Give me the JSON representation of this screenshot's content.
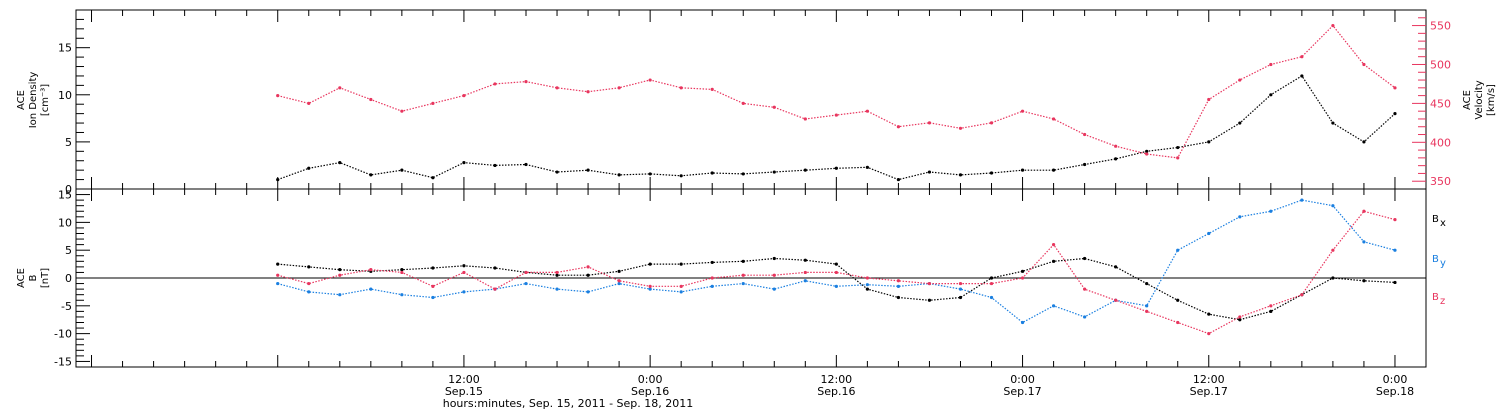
{
  "chart_data": [
    {
      "type": "scatter",
      "panel": "top",
      "ylabel_left": [
        "ACE",
        "Ion Density",
        "[cm⁻³]"
      ],
      "ylabel_right": [
        "ACE",
        "Velocity",
        "[km/s]"
      ],
      "ylim_left": [
        0,
        19
      ],
      "ylim_right": [
        340,
        570
      ],
      "left_ticks": [
        "0",
        "5",
        "10",
        "15"
      ],
      "left_tick_values": [
        0,
        5,
        10,
        15
      ],
      "right_ticks": [
        "350",
        "400",
        "450",
        "500",
        "550"
      ],
      "right_tick_values": [
        350,
        400,
        450,
        500,
        550
      ],
      "series": [
        {
          "name": "Ion Density",
          "color": "#000000",
          "axis": "left",
          "x": [
            0,
            2,
            4,
            6,
            8,
            10,
            12,
            14,
            16,
            18,
            20,
            22,
            24,
            26,
            28,
            30,
            32,
            34,
            36,
            38,
            40,
            42,
            44,
            46,
            48,
            50,
            52,
            54,
            56,
            58,
            60,
            62,
            64,
            66,
            68,
            70,
            72
          ],
          "values": [
            1.0,
            2.2,
            2.8,
            1.5,
            2.0,
            1.2,
            2.8,
            2.5,
            2.6,
            1.8,
            2.0,
            1.5,
            1.6,
            1.4,
            1.7,
            1.6,
            1.8,
            2.0,
            2.2,
            2.3,
            1.0,
            1.8,
            1.5,
            1.7,
            2.0,
            2.0,
            2.6,
            3.2,
            4.0,
            4.4,
            5.0,
            7.0,
            10.0,
            12.0,
            7.0,
            5.0,
            8.0
          ]
        },
        {
          "name": "Velocity",
          "color": "#e8355e",
          "axis": "right",
          "x": [
            0,
            2,
            4,
            6,
            8,
            10,
            12,
            14,
            16,
            18,
            20,
            22,
            24,
            26,
            28,
            30,
            32,
            34,
            36,
            38,
            40,
            42,
            44,
            46,
            48,
            50,
            52,
            54,
            56,
            58,
            60,
            62,
            64,
            66,
            68,
            70,
            72
          ],
          "values": [
            460,
            450,
            470,
            455,
            440,
            450,
            460,
            475,
            478,
            470,
            465,
            470,
            480,
            470,
            468,
            450,
            445,
            430,
            435,
            440,
            420,
            425,
            418,
            425,
            440,
            430,
            410,
            395,
            385,
            380,
            455,
            480,
            500,
            510,
            550,
            500,
            470
          ]
        }
      ]
    },
    {
      "type": "scatter",
      "panel": "bottom",
      "ylabel_left": [
        "ACE",
        "B",
        "[nT]"
      ],
      "ylim": [
        -16,
        16
      ],
      "left_ticks": [
        "15",
        "10",
        "5",
        "0",
        "-5",
        "-10",
        "-15"
      ],
      "left_tick_values": [
        15,
        10,
        5,
        0,
        -5,
        -10,
        -15
      ],
      "legend": [
        {
          "label": "B",
          "sub": "x",
          "color": "#000000"
        },
        {
          "label": "B",
          "sub": "y",
          "color": "#1a7fe0"
        },
        {
          "label": "B",
          "sub": "z",
          "color": "#e8355e"
        }
      ],
      "legend_placement": "right",
      "series": [
        {
          "name": "Bx",
          "color": "#000000",
          "x": [
            0,
            2,
            4,
            6,
            8,
            10,
            12,
            14,
            16,
            18,
            20,
            22,
            24,
            26,
            28,
            30,
            32,
            34,
            36,
            38,
            40,
            42,
            44,
            46,
            48,
            50,
            52,
            54,
            56,
            58,
            60,
            62,
            64,
            66,
            68,
            70,
            72
          ],
          "values": [
            2.5,
            2.0,
            1.5,
            1.2,
            1.5,
            1.8,
            2.2,
            1.8,
            1.0,
            0.5,
            0.5,
            1.2,
            2.5,
            2.5,
            2.8,
            3.0,
            3.5,
            3.2,
            2.5,
            -2.0,
            -3.5,
            -4.0,
            -3.5,
            0.0,
            1.2,
            3.0,
            3.5,
            2.0,
            -1.0,
            -4.0,
            -6.5,
            -7.5,
            -6.0,
            -3.0,
            0.0,
            -0.5,
            -0.8
          ]
        },
        {
          "name": "By",
          "color": "#1a7fe0",
          "x": [
            0,
            2,
            4,
            6,
            8,
            10,
            12,
            14,
            16,
            18,
            20,
            22,
            24,
            26,
            28,
            30,
            32,
            34,
            36,
            38,
            40,
            42,
            44,
            46,
            48,
            50,
            52,
            54,
            56,
            58,
            60,
            62,
            64,
            66,
            68,
            70,
            72
          ],
          "values": [
            -1.0,
            -2.5,
            -3.0,
            -2.0,
            -3.0,
            -3.5,
            -2.5,
            -2.0,
            -1.0,
            -2.0,
            -2.5,
            -1.0,
            -2.0,
            -2.5,
            -1.5,
            -1.0,
            -2.0,
            -0.5,
            -1.5,
            -1.2,
            -1.5,
            -1.0,
            -2.0,
            -3.5,
            -8.0,
            -5.0,
            -7.0,
            -4.0,
            -5.0,
            5.0,
            8.0,
            11.0,
            12.0,
            14.0,
            13.0,
            6.5,
            5.0
          ]
        },
        {
          "name": "Bz",
          "color": "#e8355e",
          "x": [
            0,
            2,
            4,
            6,
            8,
            10,
            12,
            14,
            16,
            18,
            20,
            22,
            24,
            26,
            28,
            30,
            32,
            34,
            36,
            38,
            40,
            42,
            44,
            46,
            48,
            50,
            52,
            54,
            56,
            58,
            60,
            62,
            64,
            66,
            68,
            70,
            72
          ],
          "values": [
            0.5,
            -1.0,
            0.5,
            1.5,
            1.0,
            -1.5,
            1.0,
            -2.0,
            1.0,
            1.0,
            2.0,
            -0.5,
            -1.5,
            -1.5,
            0.0,
            0.5,
            0.5,
            1.0,
            1.0,
            0.0,
            -0.5,
            -1.0,
            -1.0,
            -1.0,
            0.0,
            6.0,
            -2.0,
            -4.0,
            -6.0,
            -8.0,
            -10.0,
            -7.0,
            -5.0,
            -3.0,
            5.0,
            12.0,
            10.5
          ]
        }
      ]
    }
  ],
  "x_axis": {
    "range_hours": [
      -13,
      74
    ],
    "ticks": [
      {
        "hour": 12,
        "line1": "12:00",
        "line2": "Sep.15"
      },
      {
        "hour": 24,
        "line1": "0:00",
        "line2": "Sep.16"
      },
      {
        "hour": 36,
        "line1": "12:00",
        "line2": "Sep.16"
      },
      {
        "hour": 48,
        "line1": "0:00",
        "line2": "Sep.17"
      },
      {
        "hour": 60,
        "line1": "12:00",
        "line2": "Sep.17"
      },
      {
        "hour": 72,
        "line1": "0:00",
        "line2": "Sep.18"
      }
    ],
    "xlabel": "hours:minutes, Sep. 15, 2011 - Sep. 18, 2011"
  }
}
